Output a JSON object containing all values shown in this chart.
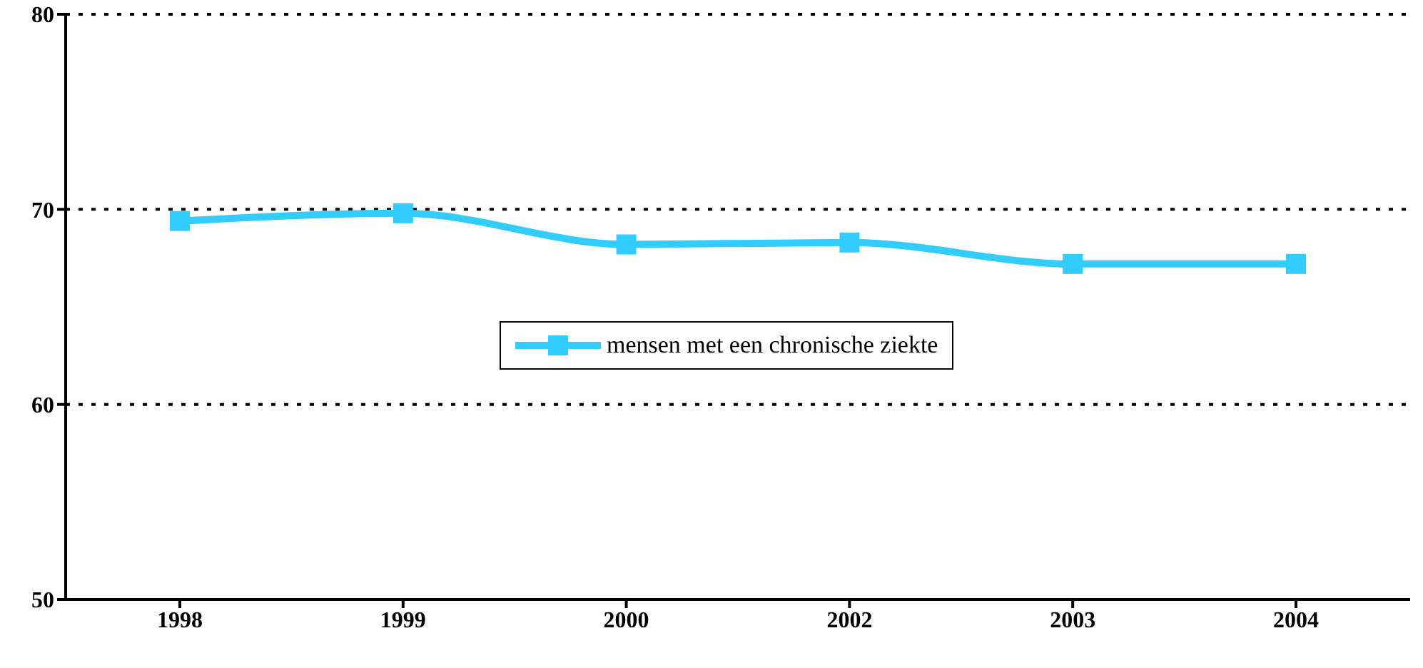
{
  "chart_data": {
    "type": "line",
    "categories": [
      "1998",
      "1999",
      "2000",
      "2002",
      "2003",
      "2004"
    ],
    "series": [
      {
        "name": "mensen met een chronische ziekte",
        "color": "#33ccff",
        "values": [
          69.4,
          69.8,
          68.2,
          68.3,
          67.2,
          67.2
        ]
      }
    ],
    "ylim": [
      50,
      80
    ],
    "yticks": [
      50,
      60,
      70,
      80
    ],
    "grid": "y",
    "legend": "center",
    "marker": "square",
    "line_style": "solid"
  }
}
